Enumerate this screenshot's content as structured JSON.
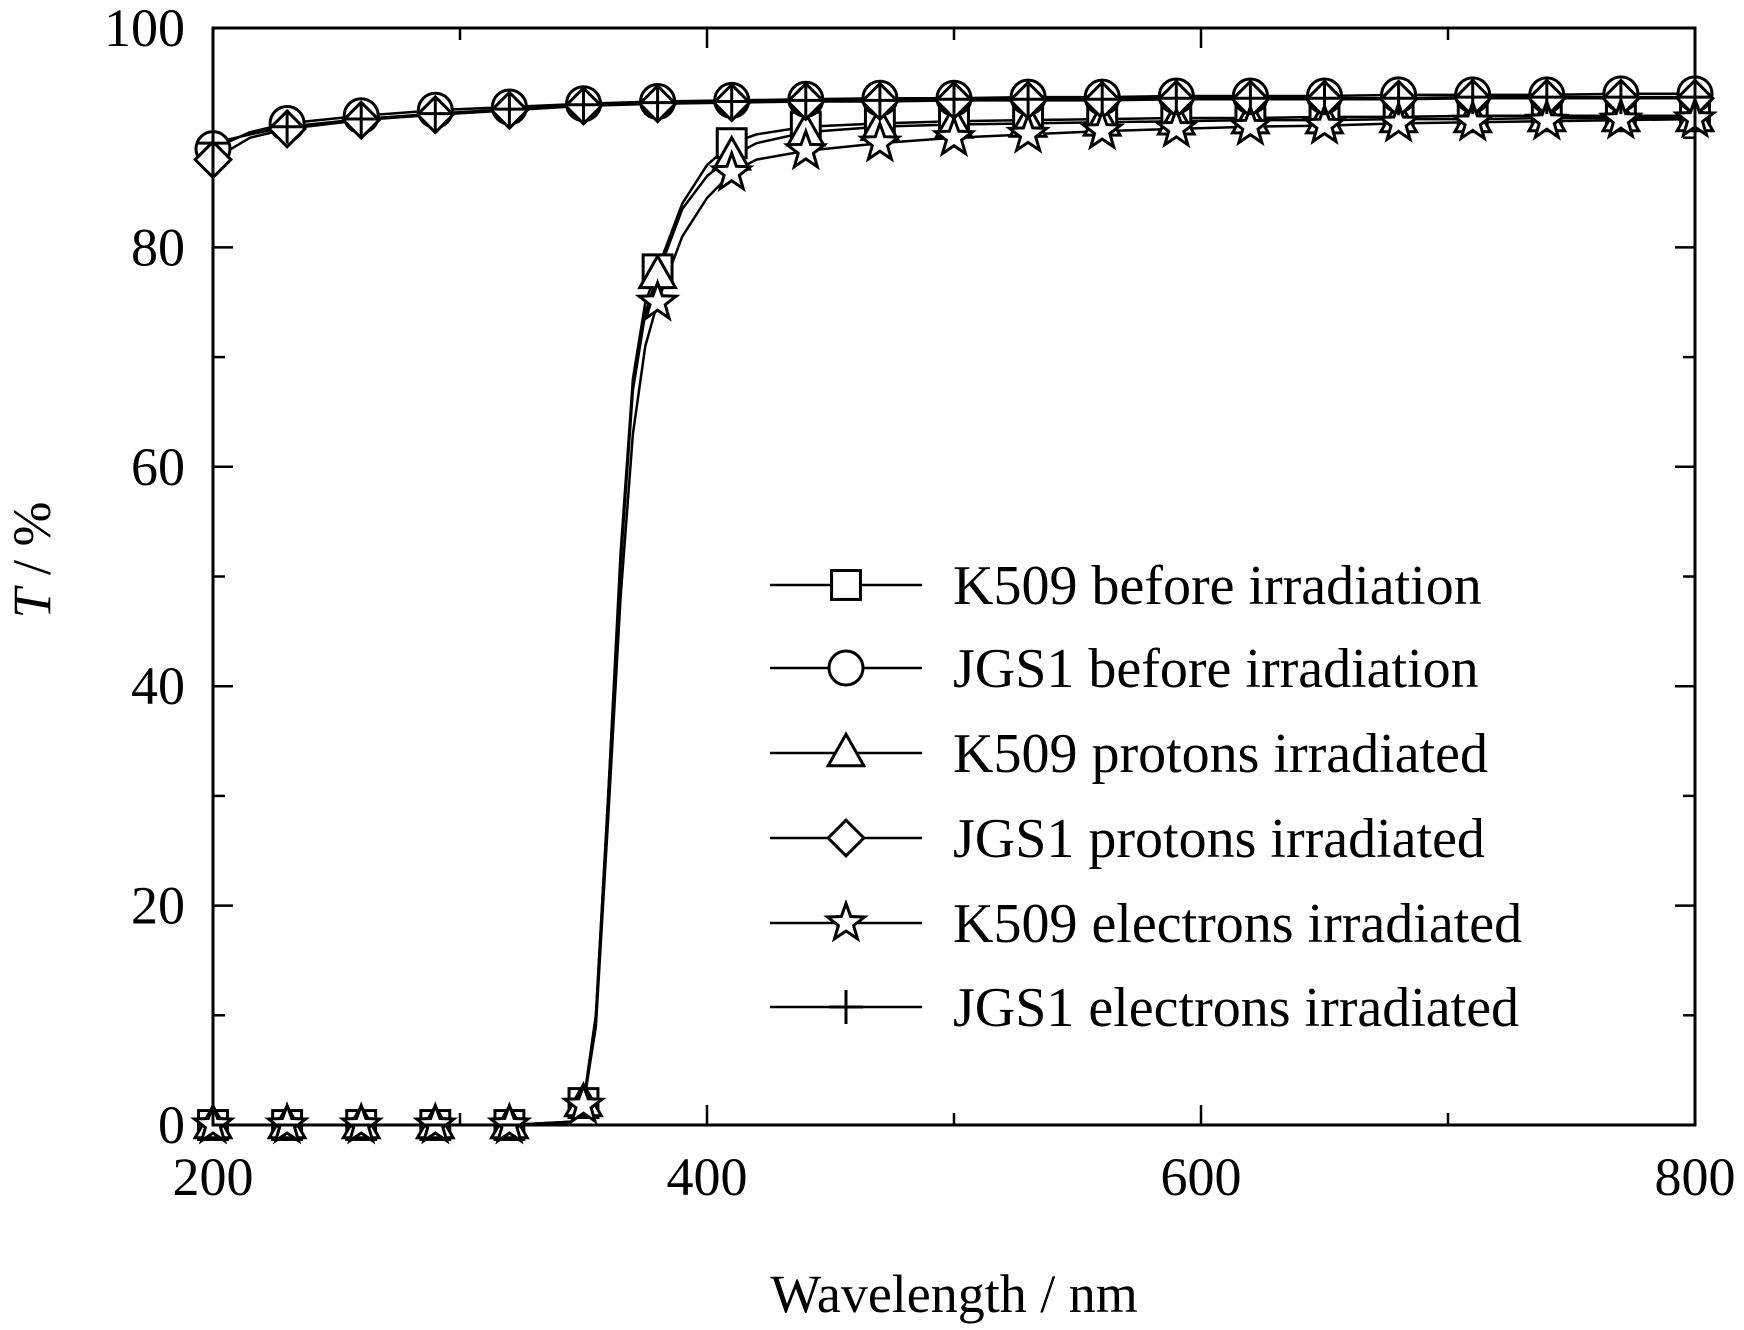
{
  "chart_data": {
    "type": "line",
    "xlabel": "Wavelength / nm",
    "ylabel_symbol": "T",
    "ylabel_unit": " / %",
    "xlim": [
      200,
      800
    ],
    "ylim": [
      0,
      100
    ],
    "x_ticks": [
      200,
      400,
      600,
      800
    ],
    "x_minor_ticks": [
      300,
      500,
      700
    ],
    "y_ticks": [
      0,
      20,
      40,
      60,
      80,
      100
    ],
    "y_minor_ticks": [
      10,
      30,
      50,
      70,
      90
    ],
    "grid": false,
    "legend_position": "lower-right",
    "marker_x": [
      200,
      230,
      260,
      290,
      320,
      350,
      380,
      410,
      440,
      470,
      500,
      530,
      560,
      590,
      620,
      650,
      680,
      710,
      740,
      770,
      800
    ],
    "series": [
      {
        "name": "K509 before irradiation",
        "marker": "square",
        "x": [
          200,
          230,
          260,
          290,
          320,
          345,
          350,
          355,
          360,
          365,
          370,
          375,
          380,
          390,
          400,
          410,
          420,
          440,
          470,
          500,
          530,
          560,
          590,
          620,
          650,
          680,
          710,
          740,
          770,
          800
        ],
        "y": [
          0,
          0,
          0,
          0,
          0,
          0.3,
          2,
          10,
          30,
          52,
          68,
          75,
          78,
          84,
          87.5,
          89.5,
          90.3,
          91,
          91.3,
          91.5,
          91.6,
          91.7,
          91.8,
          91.8,
          91.9,
          91.9,
          92,
          92,
          92,
          92
        ]
      },
      {
        "name": "JGS1 before irradiation",
        "marker": "circle",
        "x": [
          200,
          215,
          230,
          260,
          290,
          320,
          350,
          380,
          410,
          440,
          470,
          500,
          530,
          560,
          590,
          620,
          650,
          680,
          710,
          740,
          770,
          800
        ],
        "y": [
          89,
          90.5,
          91.3,
          92,
          92.5,
          92.8,
          93.1,
          93.3,
          93.4,
          93.5,
          93.6,
          93.6,
          93.7,
          93.7,
          93.8,
          93.8,
          93.8,
          93.9,
          93.9,
          93.9,
          94,
          94
        ]
      },
      {
        "name": "K509 protons irradiated",
        "marker": "triangle",
        "x": [
          200,
          230,
          260,
          290,
          320,
          345,
          350,
          355,
          360,
          365,
          370,
          375,
          380,
          390,
          400,
          410,
          420,
          440,
          470,
          500,
          530,
          560,
          590,
          620,
          650,
          680,
          710,
          740,
          770,
          800
        ],
        "y": [
          0,
          0,
          0,
          0,
          0,
          0.3,
          2,
          10,
          30,
          51,
          67,
          74,
          77.5,
          83.5,
          86.5,
          88.3,
          89.5,
          90.5,
          91,
          91.2,
          91.3,
          91.4,
          91.5,
          91.6,
          91.6,
          91.7,
          91.7,
          91.8,
          91.8,
          91.8
        ]
      },
      {
        "name": "JGS1 protons irradiated",
        "marker": "diamond",
        "x": [
          200,
          215,
          230,
          260,
          290,
          320,
          350,
          380,
          410,
          440,
          470,
          500,
          530,
          560,
          590,
          620,
          650,
          680,
          710,
          740,
          770,
          800
        ],
        "y": [
          88,
          90,
          90.8,
          91.6,
          92.1,
          92.5,
          92.9,
          93.1,
          93.2,
          93.3,
          93.3,
          93.4,
          93.4,
          93.4,
          93.5,
          93.5,
          93.5,
          93.5,
          93.6,
          93.6,
          93.6,
          93.6
        ]
      },
      {
        "name": "K509 electrons irradiated",
        "marker": "star",
        "x": [
          200,
          230,
          260,
          290,
          320,
          345,
          350,
          355,
          360,
          365,
          370,
          375,
          380,
          390,
          400,
          410,
          420,
          440,
          470,
          500,
          530,
          560,
          590,
          620,
          650,
          680,
          710,
          740,
          770,
          800
        ],
        "y": [
          0,
          0,
          0,
          0,
          0,
          0.3,
          1.8,
          9,
          28,
          48,
          63,
          71,
          75,
          81,
          84.5,
          86.8,
          88,
          88.8,
          89.5,
          90,
          90.3,
          90.6,
          90.8,
          91,
          91.1,
          91.3,
          91.4,
          91.5,
          91.6,
          91.7
        ]
      },
      {
        "name": "JGS1 electrons irradiated",
        "marker": "plus",
        "x": [
          200,
          215,
          230,
          260,
          290,
          320,
          350,
          380,
          410,
          440,
          470,
          500,
          530,
          560,
          590,
          620,
          650,
          680,
          710,
          740,
          770,
          800
        ],
        "y": [
          89.5,
          90.3,
          91,
          91.7,
          92.2,
          92.6,
          93,
          93.2,
          93.3,
          93.4,
          93.4,
          93.5,
          93.5,
          93.5,
          93.6,
          93.6,
          93.6,
          93.6,
          93.7,
          93.7,
          93.7,
          93.7
        ]
      }
    ]
  }
}
